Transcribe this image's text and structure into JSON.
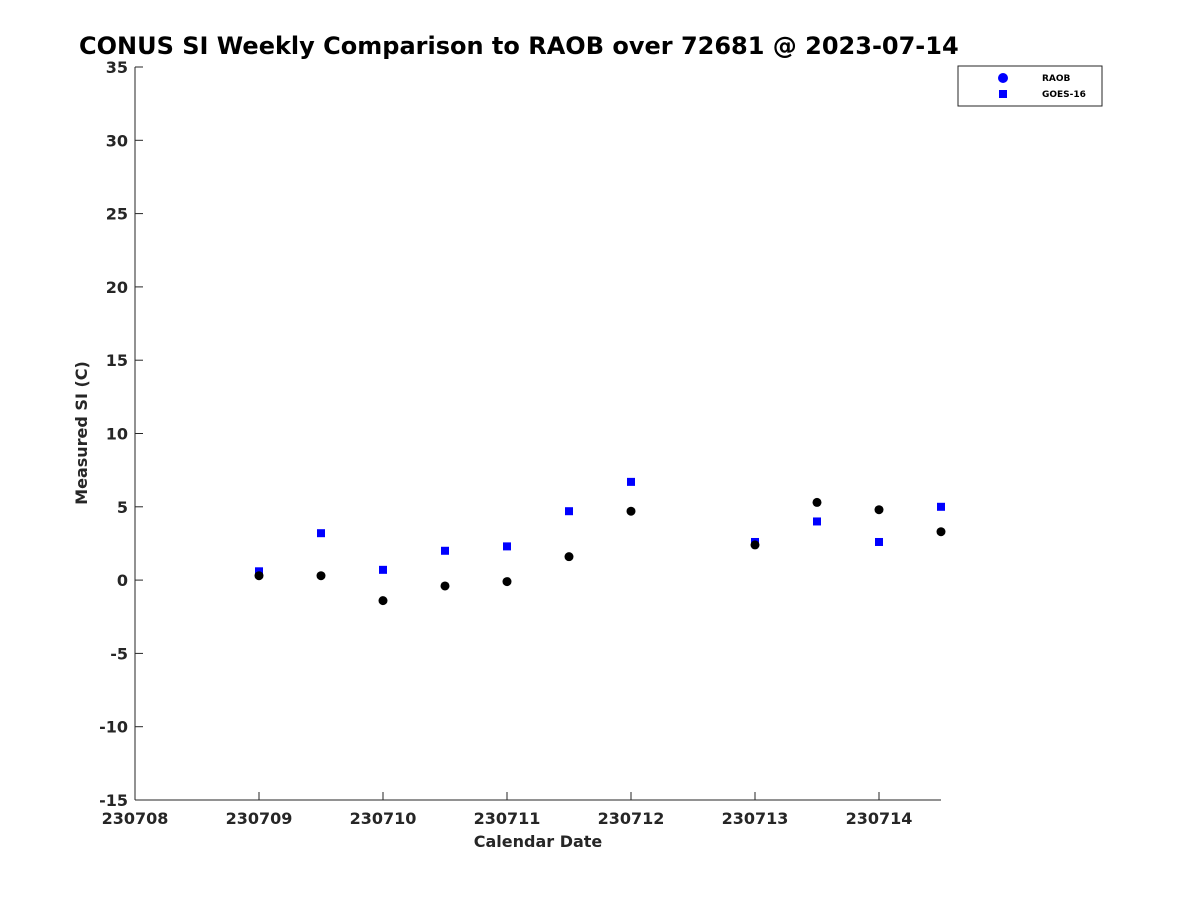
{
  "chart_data": {
    "type": "scatter",
    "title": "CONUS SI Weekly Comparison to RAOB over 72681 @ 2023-07-14",
    "xlabel": "Calendar Date",
    "ylabel": "Measured SI (C)",
    "xlim": [
      230708,
      230714.5
    ],
    "ylim": [
      -15,
      35
    ],
    "xticks": [
      230708,
      230709,
      230710,
      230711,
      230712,
      230713,
      230714
    ],
    "xtick_labels": [
      "230708",
      "230709",
      "230710",
      "230711",
      "230712",
      "230713",
      "230714"
    ],
    "yticks": [
      -15,
      -10,
      -5,
      0,
      5,
      10,
      15,
      20,
      25,
      30,
      35
    ],
    "ytick_labels": [
      "-15",
      "-10",
      "-5",
      "0",
      "5",
      "10",
      "15",
      "20",
      "25",
      "30",
      "35"
    ],
    "grid": false,
    "legend_position": "top-right",
    "series": [
      {
        "name": "RAOB",
        "marker": "circle",
        "color": "#000000",
        "legend_color": "#0000ff",
        "x": [
          230709,
          230709.5,
          230710,
          230710.5,
          230711,
          230711.5,
          230712,
          230713,
          230713.5,
          230714,
          230714.5
        ],
        "y": [
          0.3,
          0.3,
          -1.4,
          -0.4,
          -0.1,
          1.6,
          4.7,
          2.4,
          5.3,
          4.8,
          3.3
        ]
      },
      {
        "name": "GOES-16",
        "marker": "square",
        "color": "#0000ff",
        "legend_color": "#0000ff",
        "x": [
          230709,
          230709.5,
          230710,
          230710.5,
          230711,
          230711.5,
          230712,
          230713,
          230713.5,
          230714,
          230714.5
        ],
        "y": [
          0.6,
          3.2,
          0.7,
          2.0,
          2.3,
          4.7,
          6.7,
          2.6,
          4.0,
          2.6,
          5.0
        ]
      }
    ]
  }
}
